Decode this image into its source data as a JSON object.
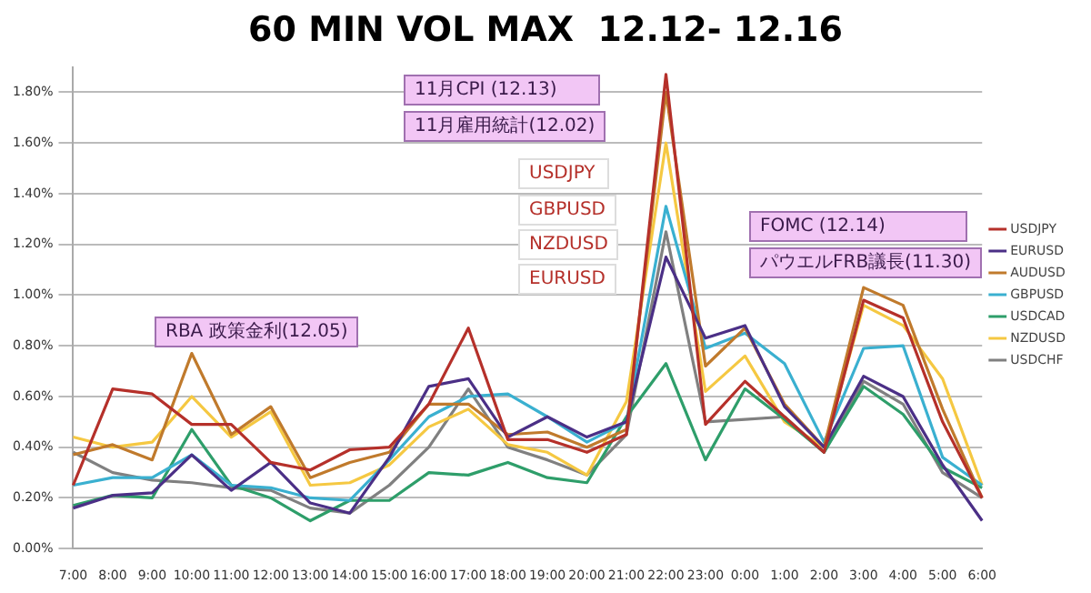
{
  "chart_data": {
    "type": "line",
    "title": "60 MIN VOL MAX  12.12- 12.16",
    "categories": [
      "7:00",
      "8:00",
      "9:00",
      "10:00",
      "11:00",
      "12:00",
      "13:00",
      "14:00",
      "15:00",
      "16:00",
      "17:00",
      "18:00",
      "19:00",
      "20:00",
      "21:00",
      "22:00",
      "23:00",
      "0:00",
      "1:00",
      "2:00",
      "3:00",
      "4:00",
      "5:00",
      "6:00"
    ],
    "series": [
      {
        "name": "USDJPY",
        "color": "#b5302a",
        "values": [
          0.25,
          0.63,
          0.61,
          0.49,
          0.49,
          0.34,
          0.31,
          0.39,
          0.4,
          0.57,
          0.87,
          0.43,
          0.43,
          0.38,
          0.45,
          1.87,
          0.49,
          0.66,
          0.52,
          0.38,
          0.98,
          0.91,
          0.5,
          0.2
        ]
      },
      {
        "name": "EURUSD",
        "color": "#4b2f86",
        "values": [
          0.16,
          0.21,
          0.22,
          0.37,
          0.23,
          0.34,
          0.18,
          0.14,
          0.36,
          0.64,
          0.67,
          0.44,
          0.52,
          0.44,
          0.5,
          1.15,
          0.83,
          0.88,
          0.56,
          0.4,
          0.68,
          0.6,
          0.33,
          0.11
        ]
      },
      {
        "name": "AUDUSD",
        "color": "#c07a2c",
        "values": [
          0.37,
          0.41,
          0.35,
          0.77,
          0.45,
          0.56,
          0.28,
          0.34,
          0.38,
          0.57,
          0.57,
          0.45,
          0.46,
          0.4,
          0.47,
          1.8,
          0.72,
          0.87,
          0.57,
          0.4,
          1.03,
          0.96,
          0.55,
          0.2
        ]
      },
      {
        "name": "GBPUSD",
        "color": "#3ab0d0",
        "values": [
          0.25,
          0.28,
          0.28,
          0.37,
          0.25,
          0.24,
          0.2,
          0.19,
          0.35,
          0.52,
          0.6,
          0.61,
          0.52,
          0.42,
          0.5,
          1.35,
          0.79,
          0.85,
          0.73,
          0.42,
          0.79,
          0.8,
          0.36,
          0.25
        ]
      },
      {
        "name": "USDCAD",
        "color": "#2e9e6a",
        "values": [
          0.17,
          0.21,
          0.2,
          0.47,
          0.25,
          0.2,
          0.11,
          0.19,
          0.19,
          0.3,
          0.29,
          0.34,
          0.28,
          0.26,
          0.52,
          0.73,
          0.35,
          0.63,
          0.51,
          0.38,
          0.64,
          0.53,
          0.32,
          0.24
        ]
      },
      {
        "name": "NZDUSD",
        "color": "#f5c842",
        "values": [
          0.44,
          0.4,
          0.42,
          0.6,
          0.44,
          0.54,
          0.25,
          0.26,
          0.33,
          0.48,
          0.55,
          0.41,
          0.38,
          0.29,
          0.58,
          1.6,
          0.62,
          0.76,
          0.5,
          0.4,
          0.96,
          0.88,
          0.67,
          0.25
        ]
      },
      {
        "name": "USDCHF",
        "color": "#808080",
        "values": [
          0.38,
          0.3,
          0.27,
          0.26,
          0.24,
          0.23,
          0.16,
          0.14,
          0.25,
          0.4,
          0.63,
          0.4,
          0.35,
          0.29,
          0.45,
          1.25,
          0.5,
          0.51,
          0.52,
          0.38,
          0.66,
          0.57,
          0.3,
          0.2
        ]
      }
    ],
    "ylim": [
      0,
      1.9
    ],
    "yticks": [
      {
        "value": 0,
        "label": "0.00%"
      },
      {
        "value": 0.2,
        "label": "0.20%"
      },
      {
        "value": 0.4,
        "label": "0.40%"
      },
      {
        "value": 0.6,
        "label": "0.60%"
      },
      {
        "value": 0.8,
        "label": "0.80%"
      },
      {
        "value": 1.0,
        "label": "1.00%"
      },
      {
        "value": 1.2,
        "label": "1.20%"
      },
      {
        "value": 1.4,
        "label": "1.40%"
      },
      {
        "value": 1.6,
        "label": "1.60%"
      },
      {
        "value": 1.8,
        "label": "1.80%"
      }
    ],
    "grid": "y",
    "legend": "right",
    "marker": "none",
    "line_style": "solid",
    "annotations": [
      "RBA 政策金利(12.05)",
      "11月CPI (12.13)",
      "11月雇用統計(12.02)",
      "USDJPY",
      "GBPUSD",
      "NZDUSD",
      "EURUSD",
      "FOMC (12.14)",
      "パウエルFRB議長(11.30)"
    ]
  }
}
